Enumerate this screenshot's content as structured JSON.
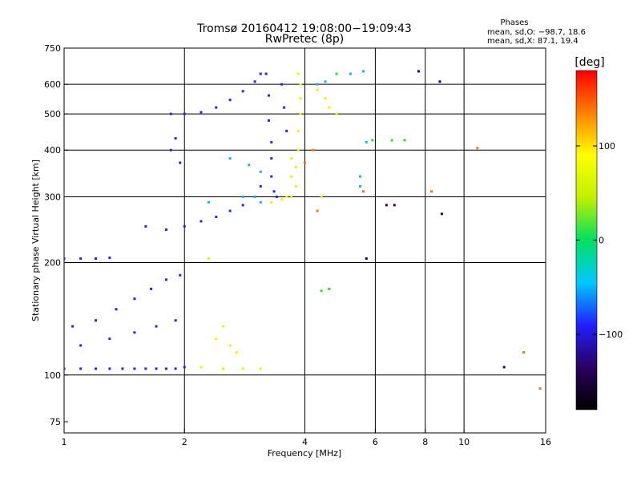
{
  "chart_data": {
    "type": "scatter",
    "title": "Tromsø 20160412 19:08:00−19:09:43",
    "subtitle": "RwPretec (8p)",
    "xlabel": "Frequency [MHz]",
    "ylabel": "Stationary phase Virtual Height [km]",
    "x_scale": "log",
    "y_scale": "log",
    "xlim": [
      1,
      16
    ],
    "ylim": [
      70,
      750
    ],
    "x_ticks": [
      1,
      2,
      4,
      6,
      8,
      10,
      16
    ],
    "x_tick_labels": [
      "1",
      "2",
      "4",
      "6",
      "8",
      "10",
      "16"
    ],
    "x_grid": [
      2,
      4,
      6,
      8,
      10
    ],
    "y_ticks": [
      75,
      100,
      200,
      300,
      400,
      500,
      600,
      750
    ],
    "y_tick_labels": [
      "75",
      "100",
      "200",
      "300",
      "400",
      "500",
      "600",
      "750"
    ],
    "y_grid": [
      100,
      200,
      300,
      400,
      500,
      600
    ],
    "grid": true,
    "phase_box": {
      "title": "Phases",
      "line1": "mean, sd,O:  −98.7, 18.6",
      "line2": "mean, sd,X:  87.1, 19.4"
    },
    "colorbar": {
      "label": "[deg]",
      "range": [
        -180,
        180
      ],
      "ticks": [
        100,
        0,
        -100
      ],
      "tick_labels": [
        "100",
        "0",
        "−100"
      ],
      "stops": [
        "#000000",
        "#2a0060",
        "#2020ff",
        "#00c8ff",
        "#00e060",
        "#c0f000",
        "#ffff00",
        "#ff8000",
        "#ff0000"
      ]
    },
    "series": [
      {
        "color": "#2626e6",
        "points": [
          [
            1.0,
            104
          ],
          [
            1.1,
            104
          ],
          [
            1.2,
            104
          ],
          [
            1.3,
            104
          ],
          [
            1.4,
            104
          ],
          [
            1.5,
            104
          ],
          [
            1.6,
            104
          ],
          [
            1.7,
            104
          ],
          [
            1.8,
            104
          ],
          [
            1.9,
            104
          ],
          [
            2.0,
            105
          ],
          [
            1.05,
            135
          ],
          [
            1.2,
            140
          ],
          [
            1.35,
            150
          ],
          [
            1.5,
            160
          ],
          [
            1.65,
            170
          ],
          [
            1.8,
            180
          ],
          [
            1.95,
            185
          ],
          [
            1.1,
            120
          ],
          [
            1.3,
            125
          ],
          [
            1.5,
            130
          ],
          [
            1.7,
            135
          ],
          [
            1.9,
            140
          ],
          [
            1.0,
            205
          ],
          [
            1.1,
            205
          ],
          [
            1.2,
            205
          ],
          [
            1.3,
            206
          ],
          [
            1.6,
            250
          ],
          [
            1.8,
            245
          ],
          [
            2.0,
            250
          ],
          [
            2.2,
            258
          ],
          [
            2.4,
            265
          ],
          [
            2.6,
            275
          ],
          [
            2.8,
            285
          ],
          [
            3.0,
            300
          ],
          [
            3.1,
            320
          ],
          [
            1.85,
            500
          ],
          [
            2.0,
            500
          ],
          [
            2.2,
            505
          ],
          [
            2.4,
            520
          ],
          [
            2.6,
            545
          ],
          [
            2.8,
            575
          ],
          [
            3.0,
            610
          ],
          [
            3.1,
            640
          ],
          [
            1.85,
            400
          ],
          [
            1.95,
            370
          ],
          [
            1.9,
            430
          ],
          [
            3.2,
            640
          ],
          [
            3.25,
            560
          ],
          [
            3.25,
            480
          ],
          [
            3.3,
            420
          ],
          [
            3.3,
            380
          ],
          [
            3.3,
            340
          ],
          [
            3.35,
            310
          ],
          [
            3.4,
            300
          ],
          [
            3.5,
            600
          ],
          [
            3.55,
            520
          ],
          [
            3.6,
            450
          ]
        ]
      },
      {
        "color": "#1ab0f0",
        "points": [
          [
            2.6,
            380
          ],
          [
            2.9,
            365
          ],
          [
            3.1,
            350
          ],
          [
            2.8,
            300
          ],
          [
            3.0,
            300
          ],
          [
            3.1,
            290
          ],
          [
            2.3,
            290
          ],
          [
            5.5,
            320
          ],
          [
            5.5,
            340
          ],
          [
            5.7,
            420
          ],
          [
            4.3,
            600
          ],
          [
            4.5,
            610
          ],
          [
            5.2,
            640
          ],
          [
            5.6,
            650
          ]
        ]
      },
      {
        "color": "#f0f000",
        "points": [
          [
            3.3,
            290
          ],
          [
            3.5,
            295
          ],
          [
            3.7,
            300
          ],
          [
            3.8,
            320
          ],
          [
            3.8,
            360
          ],
          [
            3.85,
            400
          ],
          [
            3.85,
            450
          ],
          [
            3.9,
            500
          ],
          [
            3.9,
            550
          ],
          [
            3.9,
            600
          ],
          [
            3.85,
            640
          ],
          [
            3.6,
            300
          ],
          [
            3.7,
            340
          ],
          [
            3.7,
            380
          ],
          [
            2.2,
            105
          ],
          [
            2.5,
            104
          ],
          [
            2.8,
            104
          ],
          [
            3.1,
            104
          ],
          [
            2.4,
            125
          ],
          [
            2.5,
            135
          ],
          [
            2.6,
            120
          ],
          [
            2.7,
            115
          ],
          [
            4.3,
            580
          ],
          [
            4.5,
            550
          ],
          [
            4.6,
            520
          ],
          [
            4.8,
            500
          ],
          [
            4.4,
            300
          ],
          [
            2.3,
            205
          ]
        ]
      },
      {
        "color": "#20e030",
        "points": [
          [
            4.4,
            168
          ],
          [
            4.6,
            170
          ],
          [
            4.8,
            640
          ],
          [
            5.9,
            425
          ],
          [
            7.1,
            425
          ],
          [
            6.6,
            425
          ]
        ]
      },
      {
        "color": "#ff7020",
        "points": [
          [
            4.2,
            400
          ],
          [
            4.0,
            370
          ],
          [
            5.6,
            310
          ],
          [
            8.3,
            310
          ],
          [
            10.8,
            405
          ],
          [
            14.1,
            115
          ],
          [
            15.5,
            92
          ],
          [
            4.3,
            275
          ]
        ]
      },
      {
        "color": "#2a0070",
        "points": [
          [
            6.4,
            285
          ],
          [
            6.7,
            285
          ],
          [
            7.7,
            650
          ],
          [
            8.8,
            270
          ],
          [
            5.7,
            205
          ],
          [
            12.6,
            105
          ],
          [
            8.7,
            610
          ]
        ]
      }
    ]
  }
}
